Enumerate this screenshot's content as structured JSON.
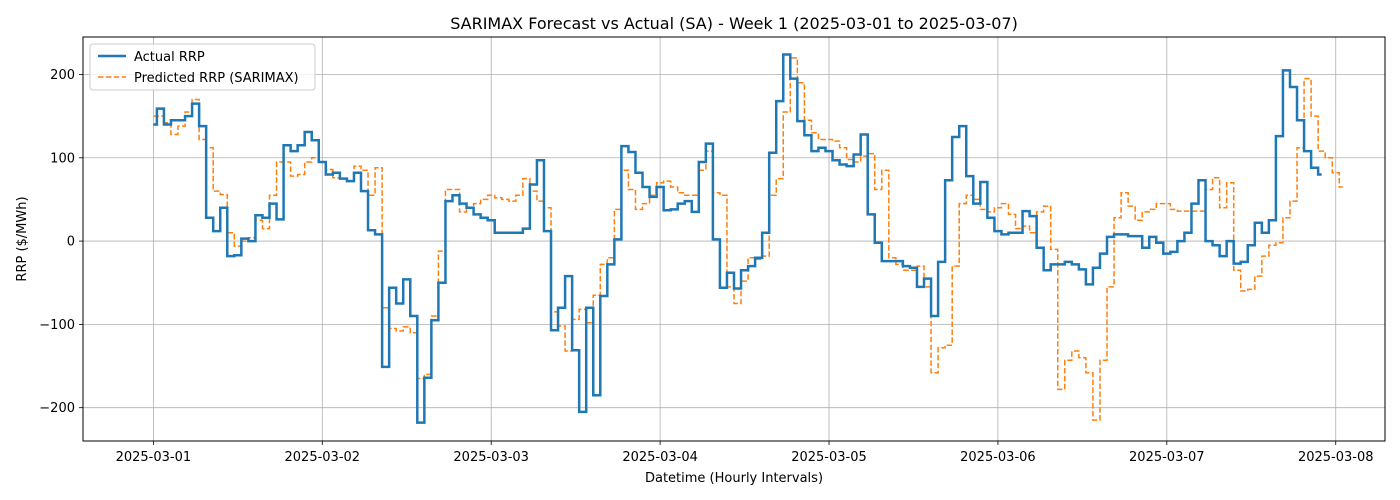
{
  "chart_data": {
    "type": "line",
    "step": true,
    "title": "SARIMAX Forecast vs Actual (SA) - Week 1 (2025-03-01 to 2025-03-07)",
    "xlabel": "Datetime (Hourly Intervals)",
    "ylabel": "RRP ($/MWh)",
    "x_start": "2025-03-01 00:00",
    "x_interval": "1 hour",
    "xlim": [
      "2025-02-28 14:00",
      "2025-03-08 07:00"
    ],
    "ylim": [
      -240,
      245
    ],
    "x_ticks": [
      "2025-03-01",
      "2025-03-02",
      "2025-03-03",
      "2025-03-04",
      "2025-03-05",
      "2025-03-06",
      "2025-03-07",
      "2025-03-08"
    ],
    "y_ticks": [
      -200,
      -100,
      0,
      100,
      200
    ],
    "y_tick_labels": [
      "−200",
      "−100",
      "0",
      "100",
      "200"
    ],
    "grid": true,
    "legend_position": "top-left",
    "series": [
      {
        "name": "Actual RRP",
        "color": "#1f77b4",
        "style": "solid",
        "values": [
          140,
          159,
          140,
          145,
          145,
          150,
          165,
          138,
          28,
          12,
          40,
          -18,
          -17,
          3,
          0,
          31,
          28,
          45,
          26,
          115,
          108,
          115,
          131,
          121,
          95,
          80,
          82,
          75,
          72,
          82,
          60,
          13,
          8,
          -151,
          -56,
          -75,
          -46,
          -90,
          -218,
          -164,
          -95,
          -50,
          48,
          55,
          45,
          40,
          32,
          28,
          25,
          10,
          10,
          10,
          10,
          15,
          68,
          97,
          12,
          -107,
          -80,
          -42,
          -131,
          -205,
          -80,
          -185,
          -66,
          -28,
          2,
          114,
          107,
          82,
          65,
          53,
          65,
          37,
          38,
          45,
          48,
          35,
          95,
          117,
          2,
          -56,
          -38,
          -57,
          -35,
          -30,
          -20,
          10,
          106,
          168,
          224,
          195,
          144,
          127,
          108,
          112,
          108,
          97,
          92,
          90,
          104,
          128,
          32,
          -2,
          -24,
          -24,
          -24,
          -30,
          -32,
          -55,
          -45,
          -90,
          -25,
          73,
          125,
          138,
          78,
          45,
          71,
          28,
          12,
          8,
          10,
          10,
          36,
          30,
          -8,
          -35,
          -28,
          -28,
          -25,
          -28,
          -34,
          -52,
          -32,
          -15,
          5,
          8,
          8,
          6,
          6,
          -8,
          5,
          -2,
          -15,
          -13,
          0,
          10,
          45,
          73,
          0,
          -5,
          -18,
          0,
          -27,
          -25,
          -5,
          22,
          10,
          25,
          126,
          205,
          185,
          145,
          108,
          88,
          80
        ]
      },
      {
        "name": "Predicted RRP (SARIMAX)",
        "color": "#ff7f0e",
        "style": "dashed",
        "values": [
          150,
          150,
          142,
          128,
          138,
          155,
          170,
          122,
          112,
          60,
          56,
          10,
          -6,
          0,
          4,
          25,
          15,
          55,
          95,
          95,
          78,
          80,
          95,
          100,
          95,
          86,
          76,
          75,
          72,
          90,
          85,
          55,
          88,
          -80,
          -105,
          -108,
          -103,
          -110,
          -165,
          -160,
          -90,
          -12,
          62,
          62,
          35,
          40,
          45,
          50,
          55,
          52,
          50,
          48,
          55,
          75,
          60,
          48,
          40,
          -85,
          -102,
          -132,
          -94,
          -82,
          -98,
          -65,
          -28,
          -20,
          38,
          85,
          62,
          38,
          45,
          55,
          70,
          72,
          65,
          58,
          55,
          55,
          85,
          108,
          58,
          55,
          -55,
          -75,
          -48,
          -20,
          -22,
          -18,
          55,
          75,
          155,
          220,
          190,
          145,
          130,
          122,
          122,
          120,
          112,
          98,
          95,
          102,
          105,
          62,
          85,
          -20,
          -28,
          -35,
          -35,
          -30,
          -55,
          -158,
          -128,
          -125,
          -30,
          45,
          55,
          50,
          38,
          35,
          40,
          45,
          32,
          15,
          18,
          10,
          35,
          42,
          -10,
          -178,
          -143,
          -132,
          -140,
          -158,
          -215,
          -143,
          -55,
          28,
          58,
          42,
          25,
          35,
          38,
          45,
          45,
          38,
          36,
          36,
          36,
          36,
          62,
          76,
          40,
          70,
          -35,
          -60,
          -58,
          -42,
          -18,
          -5,
          -2,
          28,
          48,
          112,
          195,
          150,
          108,
          100,
          82,
          65
        ]
      }
    ]
  }
}
